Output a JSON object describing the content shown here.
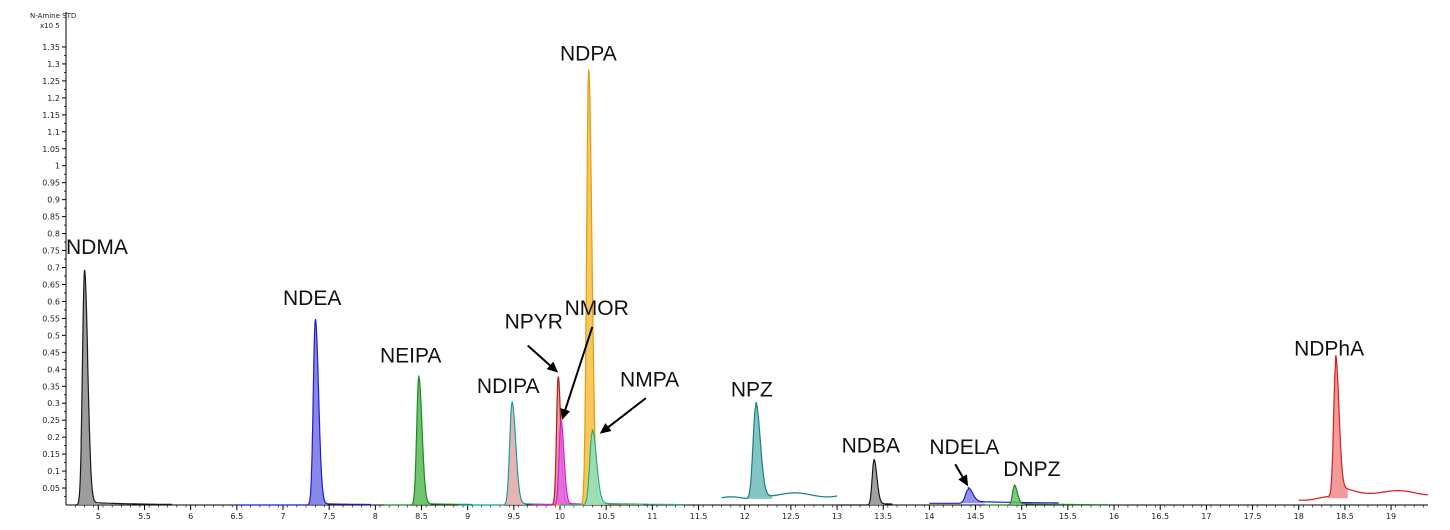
{
  "chart_data": {
    "type": "line",
    "trace_name": "N-Amine STD",
    "y_scale_label": "x10 5",
    "xlim": [
      4.65,
      19.4
    ],
    "ylim": [
      0,
      1.4
    ],
    "x_ticks": [
      "5",
      "5.5",
      "6",
      "6.5",
      "7",
      "7.5",
      "8",
      "8.5",
      "9",
      "9.5",
      "10",
      "10.5",
      "11",
      "11.5",
      "12",
      "12.5",
      "13",
      "13.5",
      "14",
      "14.5",
      "15",
      "15.5",
      "16",
      "16.5",
      "17",
      "17.5",
      "18",
      "18.5",
      "19"
    ],
    "y_ticks": [
      "0.05",
      "0.1",
      "0.15",
      "0.2",
      "0.25",
      "0.3",
      "0.35",
      "0.4",
      "0.45",
      "0.5",
      "0.55",
      "0.6",
      "0.65",
      "0.7",
      "0.75",
      "0.8",
      "0.85",
      "0.9",
      "0.95",
      "1",
      "1.05",
      "1.1",
      "1.15",
      "1.2",
      "1.25",
      "1.3",
      "1.35"
    ],
    "series": [
      {
        "label": "NDMA",
        "color": "#1a1a1a",
        "fill": "#8c8c8c",
        "peak_x": 4.85,
        "height": 0.685,
        "width": 0.022,
        "seg": [
          4.75,
          5.8
        ],
        "base": 0.0,
        "tail": 0.008
      },
      {
        "label": "NDEA",
        "color": "#1f1fc8",
        "fill": "#7373e6",
        "peak_x": 7.35,
        "height": 0.545,
        "width": 0.022,
        "seg": [
          6.5,
          7.95
        ],
        "base": 0.0,
        "tail": 0.004
      },
      {
        "label": "NEIPA",
        "color": "#1d8a1d",
        "fill": "#55bb55",
        "peak_x": 8.47,
        "height": 0.375,
        "width": 0.022,
        "seg": [
          8.1,
          9.05
        ],
        "base": 0.0,
        "tail": 0.004
      },
      {
        "label": "NDIPA",
        "color": "#1a9e9e",
        "fill": "#e3a7a7",
        "peak_x": 9.48,
        "height": 0.3,
        "width": 0.025,
        "seg": [
          8.9,
          10.15
        ],
        "base": 0.0,
        "tail": 0.004
      },
      {
        "label": "NPYR",
        "color": "#b01e1e",
        "fill": "#e58a8a",
        "peak_x": 9.98,
        "height": 0.375,
        "width": 0.018,
        "seg": [
          9.7,
          10.5
        ],
        "base": 0.0,
        "tail": 0.004
      },
      {
        "label": "NMOR",
        "color": "#d21ed2",
        "fill": "#e865e8",
        "peak_x": 10.01,
        "height": 0.245,
        "width": 0.02,
        "seg": [
          9.7,
          10.5
        ],
        "base": 0.0,
        "tail": 0.004
      },
      {
        "label": "NDPA",
        "color": "#e89a10",
        "fill": "#f5c040",
        "peak_x": 10.31,
        "height": 1.28,
        "width": 0.022,
        "seg": [
          9.95,
          10.9
        ],
        "base": 0.0,
        "tail": 0.004
      },
      {
        "label": "NMPA",
        "color": "#2ab07a",
        "fill": "#8ee0c0",
        "peak_x": 10.35,
        "height": 0.215,
        "width": 0.028,
        "seg": [
          10.0,
          11.35
        ],
        "base": 0.0,
        "tail": 0.006
      },
      {
        "label": "NPZ",
        "color": "#1a8080",
        "fill": "#6fbaba",
        "peak_x": 12.12,
        "height": 0.275,
        "width": 0.03,
        "seg": [
          11.75,
          13.0
        ],
        "base": 0.018,
        "tail": 0.015
      },
      {
        "label": "NDBA",
        "color": "#1a1a1a",
        "fill": "#909090",
        "peak_x": 13.4,
        "height": 0.13,
        "width": 0.02,
        "seg": [
          13.0,
          13.6
        ],
        "base": 0.0,
        "tail": 0.004
      },
      {
        "label": "NDELA",
        "color": "#1f1fc8",
        "fill": "#7f7fe8",
        "peak_x": 14.42,
        "height": 0.04,
        "width": 0.03,
        "seg": [
          14.0,
          15.4
        ],
        "base": 0.005,
        "tail": 0.006
      },
      {
        "label": "DNPZ",
        "color": "#1d8a1d",
        "fill": "#66c066",
        "peak_x": 14.92,
        "height": 0.055,
        "width": 0.02,
        "seg": [
          14.6,
          15.95
        ],
        "base": 0.0,
        "tail": 0.004
      },
      {
        "label": "NDPhA",
        "color": "#d81e1e",
        "fill": "#ee8a8a",
        "peak_x": 18.4,
        "height": 0.385,
        "width": 0.022,
        "seg": [
          18.0,
          19.4
        ],
        "base": 0.02,
        "tail": 0.03
      }
    ],
    "annotations": [
      {
        "text": "NDMA",
        "x": 4.65,
        "y": 0.74
      },
      {
        "text": "NDEA",
        "x": 7.0,
        "y": 0.59
      },
      {
        "text": "NEIPA",
        "x": 8.05,
        "y": 0.42
      },
      {
        "text": "NDIPA",
        "x": 9.1,
        "y": 0.33
      },
      {
        "text": "NPYR",
        "x": 9.4,
        "y": 0.52
      },
      {
        "text": "NMOR",
        "x": 10.05,
        "y": 0.56
      },
      {
        "text": "NDPA",
        "x": 10.0,
        "y": 1.31
      },
      {
        "text": "NMPA",
        "x": 10.65,
        "y": 0.35
      },
      {
        "text": "NPZ",
        "x": 11.85,
        "y": 0.32
      },
      {
        "text": "NDBA",
        "x": 13.05,
        "y": 0.155
      },
      {
        "text": "NDELA",
        "x": 14.0,
        "y": 0.15
      },
      {
        "text": "DNPZ",
        "x": 14.8,
        "y": 0.085
      },
      {
        "text": "NDPhA",
        "x": 17.95,
        "y": 0.44
      }
    ],
    "arrows": [
      {
        "name": "npyr-arrow",
        "from": [
          9.65,
          0.47
        ],
        "to": [
          9.98,
          0.39
        ]
      },
      {
        "name": "nmor-arrow",
        "from": [
          10.35,
          0.525
        ],
        "to": [
          10.02,
          0.25
        ]
      },
      {
        "name": "nmpa-arrow",
        "from": [
          10.93,
          0.315
        ],
        "to": [
          10.43,
          0.21
        ]
      },
      {
        "name": "ndela-arrow",
        "from": [
          14.28,
          0.12
        ],
        "to": [
          14.42,
          0.055
        ]
      }
    ]
  }
}
